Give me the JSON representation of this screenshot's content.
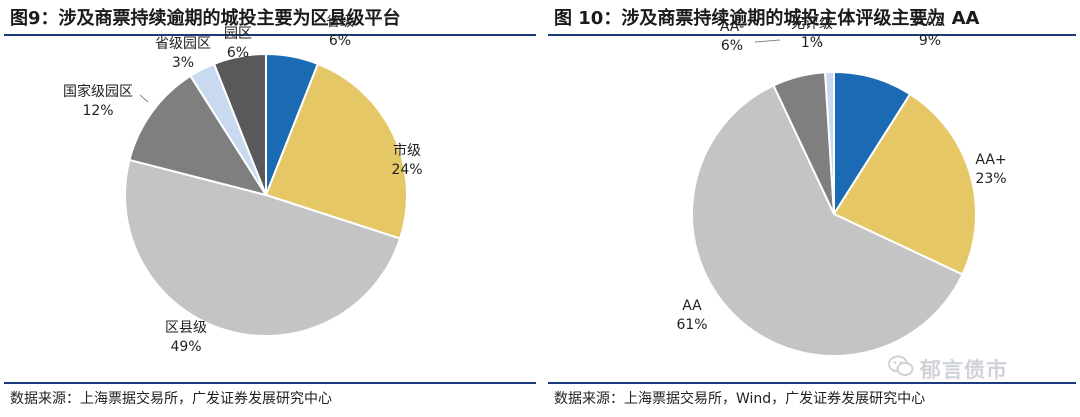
{
  "chart_data": [
    {
      "type": "pie",
      "title": "图9：涉及商票持续逾期的城投主要为区县级平台",
      "source": "数据来源：上海票据交易所，广发证券发展研究中心",
      "slices": [
        {
          "label": "省级",
          "value": 6,
          "pct": "6%",
          "color": "#1b6ab4"
        },
        {
          "label": "市级",
          "value": 24,
          "pct": "24%",
          "color": "#e5c766"
        },
        {
          "label": "区县级",
          "value": 49,
          "pct": "49%",
          "color": "#c4c4c4"
        },
        {
          "label": "国家级园区",
          "value": 12,
          "pct": "12%",
          "color": "#7f7f7f"
        },
        {
          "label": "省级园区",
          "value": 3,
          "pct": "3%",
          "color": "#c9d9ef"
        },
        {
          "label": "园区",
          "value": 6,
          "pct": "6%",
          "color": "#595959"
        }
      ]
    },
    {
      "type": "pie",
      "title": "图 10：涉及商票持续逾期的城投主体评级主要为 AA",
      "source": "数据来源：上海票据交易所，Wind，广发证券发展研究中心",
      "slices": [
        {
          "label": "AAA",
          "value": 9,
          "pct": "9%",
          "color": "#1b6ab4"
        },
        {
          "label": "AA+",
          "value": 23,
          "pct": "23%",
          "color": "#e5c766"
        },
        {
          "label": "AA",
          "value": 61,
          "pct": "61%",
          "color": "#c4c4c4"
        },
        {
          "label": "AA-",
          "value": 6,
          "pct": "6%",
          "color": "#7f7f7f"
        },
        {
          "label": "无评级",
          "value": 1,
          "pct": "1%",
          "color": "#c9d9ef"
        }
      ]
    }
  ],
  "watermark": {
    "text": "郁言债市",
    "icon": "wechat-icon"
  }
}
